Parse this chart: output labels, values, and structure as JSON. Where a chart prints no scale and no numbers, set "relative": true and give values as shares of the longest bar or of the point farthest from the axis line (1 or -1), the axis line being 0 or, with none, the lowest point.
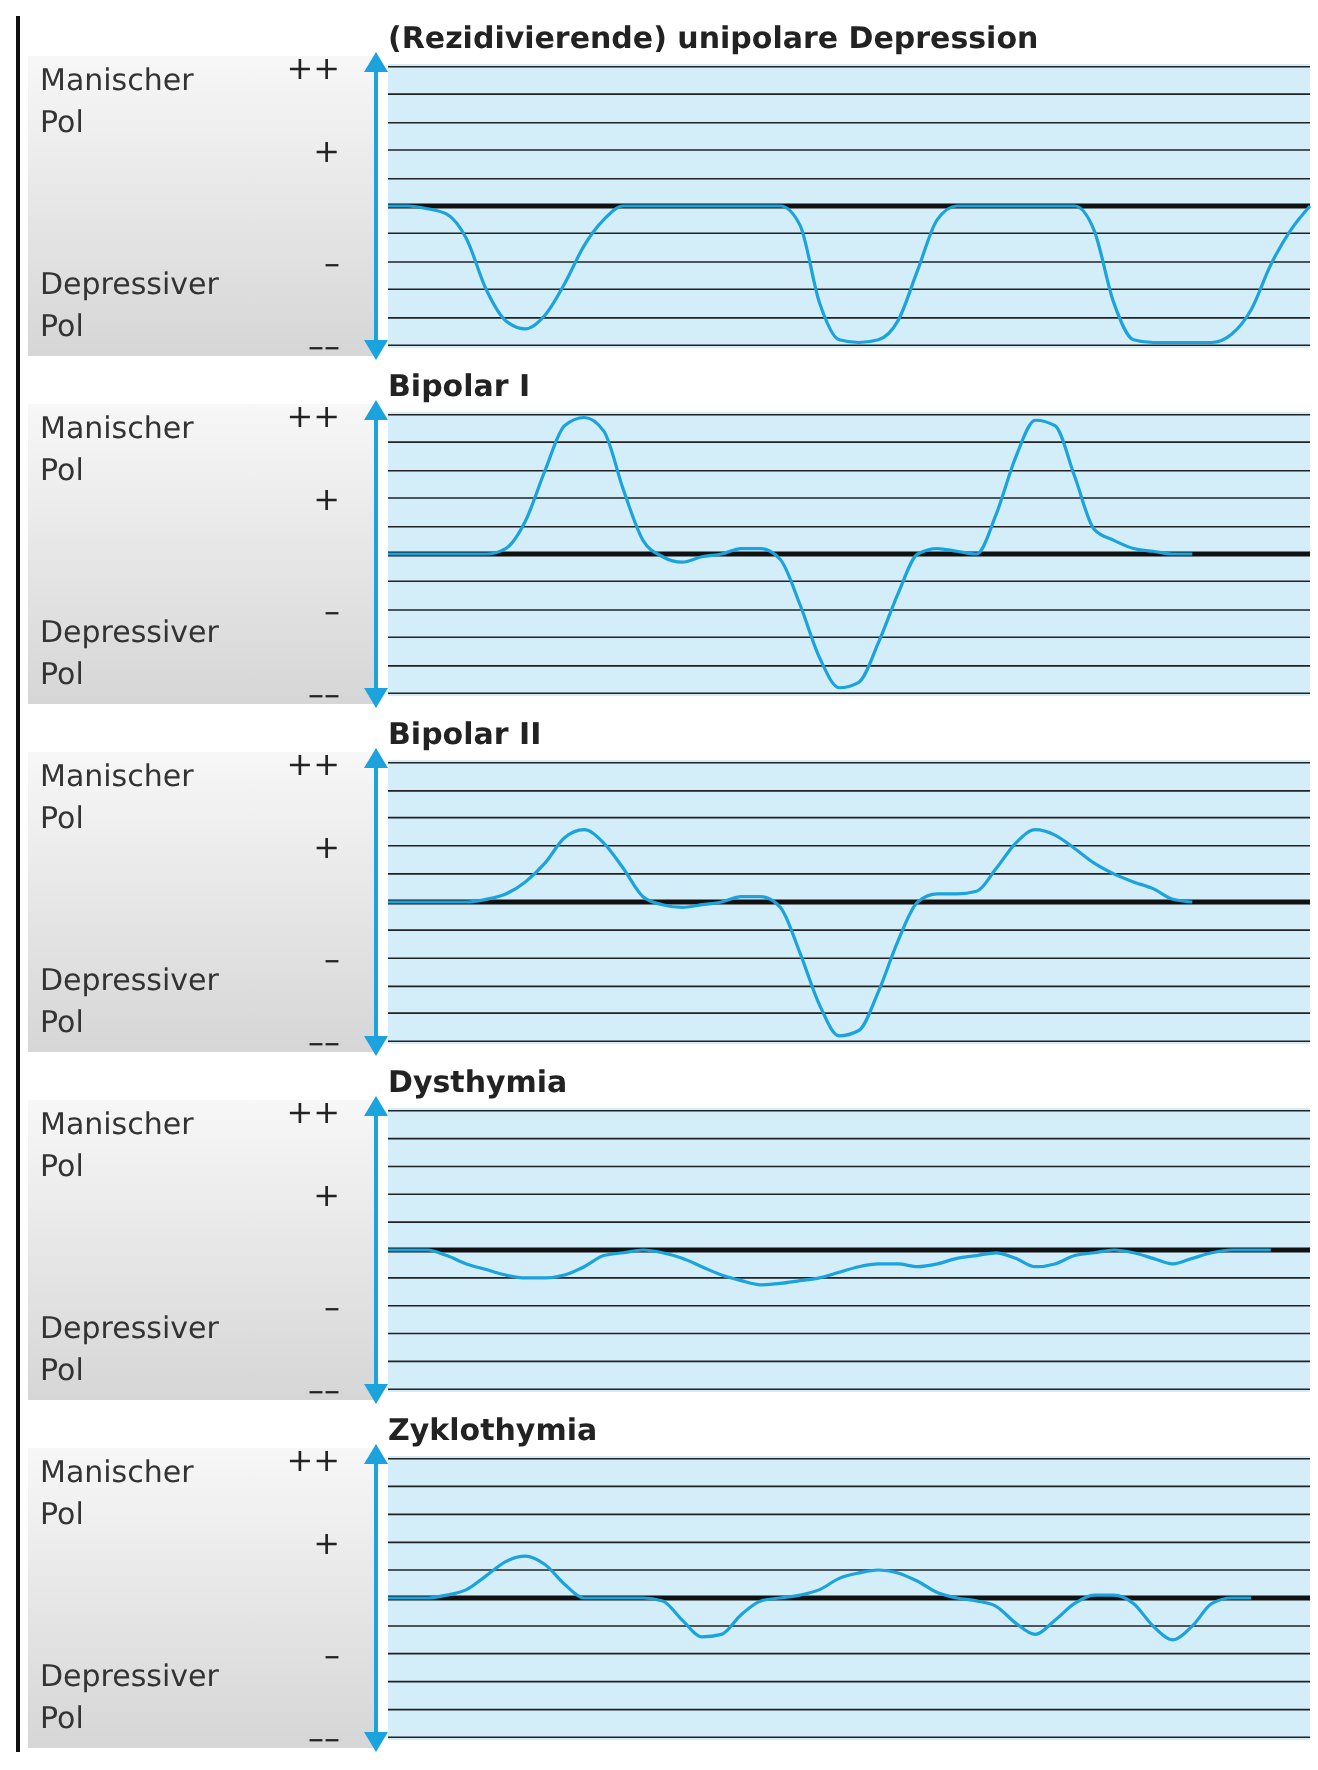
{
  "chart_data": [
    {
      "type": "line",
      "title": "(Rezidivierende) unipolare Depression",
      "annotations": [
        "Manischer Pol",
        "Depressiver Pol"
      ],
      "categories": [
        null,
        null,
        null,
        null,
        null,
        null,
        null,
        null,
        null,
        null,
        null,
        null,
        null,
        null,
        null,
        null,
        null,
        null,
        null,
        null,
        null,
        null,
        null,
        null,
        null,
        null,
        null,
        null,
        null,
        null,
        null,
        null,
        null,
        null,
        null,
        null,
        null,
        null,
        null,
        null,
        null,
        null,
        null,
        null,
        null,
        null,
        null,
        null
      ],
      "relative": true,
      "tick_labels": false,
      "ref_lines": [
        {
          "axis": "y",
          "value": 0,
          "color": "#111111"
        },
        {
          "axis": "y",
          "value": 1.02,
          "label": "++",
          "color": "#222222"
        },
        {
          "axis": "y",
          "value": 0.41,
          "label": "+",
          "color": "#222222"
        },
        {
          "axis": "y",
          "value": -0.41,
          "label": "–",
          "color": "#222222"
        },
        {
          "axis": "y",
          "value": -1.02,
          "label": "––",
          "color": "#222222"
        },
        {
          "axis": "y",
          "value": 0.82,
          "color": "#222222"
        },
        {
          "axis": "y",
          "value": 0.61,
          "color": "#222222"
        },
        {
          "axis": "y",
          "value": 0.2,
          "color": "#222222"
        },
        {
          "axis": "y",
          "value": -0.2,
          "color": "#222222"
        },
        {
          "axis": "y",
          "value": -0.61,
          "color": "#222222"
        },
        {
          "axis": "y",
          "value": -0.82,
          "color": "#222222"
        }
      ],
      "series": [
        {
          "color": "#1aa3dc",
          "values": [
            0,
            0,
            -0.02,
            -0.06,
            -0.24,
            -0.61,
            -0.84,
            -0.9,
            -0.8,
            -0.57,
            -0.29,
            -0.1,
            0,
            0,
            0,
            0,
            0,
            0,
            0,
            0,
            0,
            -0.14,
            -0.71,
            -0.98,
            -1,
            -0.98,
            -0.84,
            -0.47,
            -0.1,
            0,
            0,
            0,
            0,
            0,
            0,
            0,
            -0.18,
            -0.71,
            -0.98,
            -1,
            -1,
            -1,
            -1,
            -0.94,
            -0.76,
            -0.43,
            -0.18,
            0
          ]
        }
      ]
    },
    {
      "type": "line",
      "title": "Bipolar I",
      "annotations": [
        "Manischer Pol",
        "Depressiver Pol"
      ],
      "categories": [
        null,
        null,
        null,
        null,
        null,
        null,
        null,
        null,
        null,
        null,
        null,
        null,
        null,
        null,
        null,
        null,
        null,
        null,
        null,
        null,
        null,
        null,
        null,
        null,
        null,
        null,
        null,
        null,
        null,
        null,
        null,
        null,
        null,
        null,
        null,
        null,
        null,
        null,
        null,
        null,
        null,
        null,
        null,
        null,
        null,
        null,
        null,
        null
      ],
      "relative": true,
      "tick_labels": false,
      "ref_lines": [
        {
          "axis": "y",
          "value": 0,
          "color": "#111111"
        },
        {
          "axis": "y",
          "value": 1.02,
          "label": "++",
          "color": "#222222"
        },
        {
          "axis": "y",
          "value": 0.41,
          "label": "+",
          "color": "#222222"
        },
        {
          "axis": "y",
          "value": -0.41,
          "label": "–",
          "color": "#222222"
        },
        {
          "axis": "y",
          "value": -1.02,
          "label": "––",
          "color": "#222222"
        },
        {
          "axis": "y",
          "value": 0.82,
          "color": "#222222"
        },
        {
          "axis": "y",
          "value": 0.61,
          "color": "#222222"
        },
        {
          "axis": "y",
          "value": 0.2,
          "color": "#222222"
        },
        {
          "axis": "y",
          "value": -0.2,
          "color": "#222222"
        },
        {
          "axis": "y",
          "value": -0.61,
          "color": "#222222"
        },
        {
          "axis": "y",
          "value": -0.82,
          "color": "#222222"
        }
      ],
      "series": [
        {
          "color": "#1aa3dc",
          "values": [
            0,
            0,
            0,
            0,
            0,
            0,
            0.04,
            0.24,
            0.61,
            0.94,
            1,
            0.9,
            0.47,
            0.1,
            -0.02,
            -0.06,
            -0.02,
            0,
            0.04,
            0.04,
            -0.04,
            -0.37,
            -0.76,
            -0.98,
            -0.94,
            -0.65,
            -0.29,
            0,
            0.04,
            0.02,
            0,
            0.29,
            0.71,
            0.98,
            0.94,
            0.57,
            0.18,
            0.1,
            0.04,
            0.02,
            0,
            0,
            null,
            null,
            null,
            null,
            null,
            null
          ]
        }
      ]
    },
    {
      "type": "line",
      "title": "Bipolar II",
      "annotations": [
        "Manischer Pol",
        "Depressiver Pol"
      ],
      "categories": [
        null,
        null,
        null,
        null,
        null,
        null,
        null,
        null,
        null,
        null,
        null,
        null,
        null,
        null,
        null,
        null,
        null,
        null,
        null,
        null,
        null,
        null,
        null,
        null,
        null,
        null,
        null,
        null,
        null,
        null,
        null,
        null,
        null,
        null,
        null,
        null,
        null,
        null,
        null,
        null,
        null,
        null,
        null,
        null,
        null,
        null,
        null,
        null
      ],
      "relative": true,
      "tick_labels": false,
      "ref_lines": [
        {
          "axis": "y",
          "value": 0,
          "color": "#111111"
        },
        {
          "axis": "y",
          "value": 1.04,
          "label": "++",
          "color": "#222222"
        },
        {
          "axis": "y",
          "value": 0.42,
          "label": "+",
          "color": "#222222"
        },
        {
          "axis": "y",
          "value": -0.42,
          "label": "–",
          "color": "#222222"
        },
        {
          "axis": "y",
          "value": -1.04,
          "label": "––",
          "color": "#222222"
        },
        {
          "axis": "y",
          "value": 0.83,
          "color": "#222222"
        },
        {
          "axis": "y",
          "value": 0.63,
          "color": "#222222"
        },
        {
          "axis": "y",
          "value": 0.21,
          "color": "#222222"
        },
        {
          "axis": "y",
          "value": -0.21,
          "color": "#222222"
        },
        {
          "axis": "y",
          "value": -0.63,
          "color": "#222222"
        },
        {
          "axis": "y",
          "value": -0.83,
          "color": "#222222"
        }
      ],
      "series": [
        {
          "color": "#1aa3dc",
          "values": [
            0,
            0,
            0,
            0,
            0,
            0.02,
            0.06,
            0.15,
            0.29,
            0.48,
            0.54,
            0.44,
            0.25,
            0.04,
            -0.02,
            -0.04,
            -0.02,
            0,
            0.04,
            0.04,
            -0.04,
            -0.38,
            -0.77,
            -1,
            -0.96,
            -0.67,
            -0.29,
            0,
            0.06,
            0.06,
            0.08,
            0.25,
            0.44,
            0.54,
            0.5,
            0.4,
            0.29,
            0.21,
            0.15,
            0.1,
            0.02,
            0,
            null,
            null,
            null,
            null,
            null,
            null
          ]
        }
      ]
    },
    {
      "type": "line",
      "title": "Dysthymia",
      "annotations": [
        "Manischer Pol",
        "Depressiver Pol"
      ],
      "categories": [
        null,
        null,
        null,
        null,
        null,
        null,
        null,
        null,
        null,
        null,
        null,
        null,
        null,
        null,
        null,
        null,
        null,
        null,
        null,
        null,
        null,
        null,
        null,
        null,
        null,
        null,
        null,
        null,
        null,
        null,
        null,
        null,
        null,
        null,
        null,
        null,
        null,
        null,
        null,
        null,
        null,
        null,
        null,
        null,
        null,
        null,
        null,
        null
      ],
      "relative": true,
      "tick_labels": false,
      "ref_lines": [
        {
          "axis": "y",
          "value": 0,
          "color": "#111111"
        },
        {
          "axis": "y",
          "value": 4,
          "label": "++",
          "color": "#222222"
        },
        {
          "axis": "y",
          "value": 1.6,
          "label": "+",
          "color": "#222222"
        },
        {
          "axis": "y",
          "value": -1.6,
          "label": "–",
          "color": "#222222"
        },
        {
          "axis": "y",
          "value": -4,
          "label": "––",
          "color": "#222222"
        },
        {
          "axis": "y",
          "value": 3.2,
          "color": "#222222"
        },
        {
          "axis": "y",
          "value": 2.4,
          "color": "#222222"
        },
        {
          "axis": "y",
          "value": 0.8,
          "color": "#222222"
        },
        {
          "axis": "y",
          "value": -0.8,
          "color": "#222222"
        },
        {
          "axis": "y",
          "value": -2.4,
          "color": "#222222"
        },
        {
          "axis": "y",
          "value": -3.2,
          "color": "#222222"
        }
      ],
      "series": [
        {
          "color": "#1aa3dc",
          "values": [
            0,
            0,
            0,
            -0.16,
            -0.4,
            -0.56,
            -0.72,
            -0.8,
            -0.8,
            -0.72,
            -0.48,
            -0.16,
            -0.08,
            0,
            -0.08,
            -0.24,
            -0.48,
            -0.72,
            -0.88,
            -1,
            -0.96,
            -0.88,
            -0.8,
            -0.64,
            -0.48,
            -0.4,
            -0.4,
            -0.48,
            -0.4,
            -0.24,
            -0.16,
            -0.08,
            -0.24,
            -0.48,
            -0.4,
            -0.16,
            -0.08,
            0,
            -0.08,
            -0.24,
            -0.4,
            -0.24,
            -0.08,
            0,
            0,
            0,
            null,
            null
          ]
        }
      ]
    },
    {
      "type": "line",
      "title": "Zyklothymia",
      "annotations": [
        "Manischer Pol",
        "Depressiver Pol"
      ],
      "categories": [
        null,
        null,
        null,
        null,
        null,
        null,
        null,
        null,
        null,
        null,
        null,
        null,
        null,
        null,
        null,
        null,
        null,
        null,
        null,
        null,
        null,
        null,
        null,
        null,
        null,
        null,
        null,
        null,
        null,
        null,
        null,
        null,
        null,
        null,
        null,
        null,
        null,
        null,
        null,
        null,
        null,
        null,
        null,
        null,
        null,
        null,
        null,
        null
      ],
      "relative": true,
      "tick_labels": false,
      "ref_lines": [
        {
          "axis": "y",
          "value": 0,
          "color": "#111111"
        },
        {
          "axis": "y",
          "value": 3.33,
          "label": "++",
          "color": "#222222"
        },
        {
          "axis": "y",
          "value": 1.33,
          "label": "+",
          "color": "#222222"
        },
        {
          "axis": "y",
          "value": -1.33,
          "label": "–",
          "color": "#222222"
        },
        {
          "axis": "y",
          "value": -3.33,
          "label": "––",
          "color": "#222222"
        },
        {
          "axis": "y",
          "value": 2.67,
          "color": "#222222"
        },
        {
          "axis": "y",
          "value": 2,
          "color": "#222222"
        },
        {
          "axis": "y",
          "value": 0.67,
          "color": "#222222"
        },
        {
          "axis": "y",
          "value": -0.67,
          "color": "#222222"
        },
        {
          "axis": "y",
          "value": -2,
          "color": "#222222"
        },
        {
          "axis": "y",
          "value": -2.67,
          "color": "#222222"
        }
      ],
      "series": [
        {
          "color": "#1aa3dc",
          "values": [
            0,
            0,
            0,
            0.07,
            0.2,
            0.53,
            0.87,
            1,
            0.8,
            0.33,
            0,
            0,
            0,
            0,
            -0.07,
            -0.53,
            -0.93,
            -0.87,
            -0.4,
            -0.07,
            0,
            0.07,
            0.2,
            0.47,
            0.6,
            0.67,
            0.6,
            0.4,
            0.13,
            0,
            -0.07,
            -0.2,
            -0.6,
            -0.87,
            -0.53,
            -0.13,
            0.07,
            0.07,
            -0.13,
            -0.67,
            -1,
            -0.67,
            -0.13,
            0,
            0,
            null,
            null,
            null
          ]
        }
      ]
    }
  ]
}
